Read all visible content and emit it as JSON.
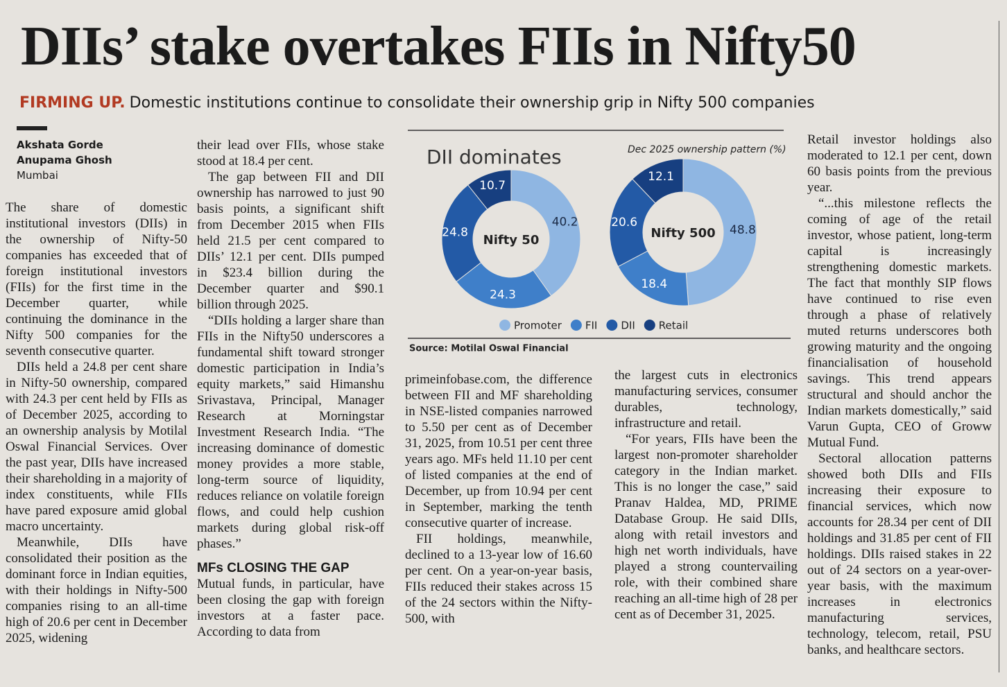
{
  "header": {
    "title": "DIIs’ stake overtakes FIIs in Nifty50",
    "kicker": "FIRMING UP.",
    "subtitle": "Domestic institutions continue to consolidate their ownership grip in Nifty 500 companies"
  },
  "byline": {
    "authors": [
      "Akshata Gorde",
      "Anupama Ghosh"
    ],
    "place": "Mumbai"
  },
  "chart_data": {
    "type": "pie",
    "donut": true,
    "title": "DII dominates",
    "subtitle": "Dec 2025 ownership pattern (%)",
    "source": "Source: Motilal Oswal Financial",
    "categories": [
      "Promoter",
      "FII",
      "DII",
      "Retail"
    ],
    "colors": [
      "#8fb6e2",
      "#3f7fc9",
      "#235aa6",
      "#173f80"
    ],
    "series": [
      {
        "name": "Nifty 50",
        "values": [
          40.2,
          24.3,
          24.8,
          10.7
        ]
      },
      {
        "name": "Nifty 500",
        "values": [
          48.8,
          18.4,
          20.6,
          12.1
        ]
      }
    ]
  },
  "columns": [
    {
      "paragraphs": [
        "The share of domestic institutional investors (DIIs) in the ownership of Nifty-50 companies has exceeded that of foreign institutional investors (FIIs) for the first time in the December quarter, while continuing the dominance in the Nifty 500 companies for the seventh consecutive quarter.",
        "DIIs held a 24.8 per cent share in Nifty-50 ownership, compared with 24.3 per cent held by FIIs as of December 2025, according to an ownership analysis by Motilal Oswal Financial Services. Over the past year, DIIs have increased their shareholding in a majority of index constituents, while FIIs have pared exposure amid global macro uncertainty.",
        "Meanwhile, DIIs have consolidated their position as the dominant force in Indian equities, with their holdings in Nifty-500 companies rising to an all-time high of 20.6 per cent in December 2025, widening"
      ]
    },
    {
      "paragraphs": [
        "their lead over FIIs, whose stake stood at 18.4 per cent.",
        "The gap between FII and DII ownership has narrowed to just 90 basis points, a significant shift from December 2015 when FIIs held 21.5 per cent compared to DIIs’ 12.1 per cent. DIIs pumped in $23.4 billion during the December quarter and $90.1 billion through 2025.",
        "“DIIs holding a larger share than FIIs in the Nifty50 underscores a fundamental shift toward stronger domestic participation in India’s equity markets,” said Himanshu Srivastava, Principal, Manager Research at Morningstar Investment Research India. “The increasing dominance of domestic money provides a more stable, long-term source of liquidity, reduces reliance on volatile foreign flows, and could help cushion markets during global risk-off phases.”"
      ],
      "subhead": "MFs CLOSING THE GAP",
      "after": [
        "Mutual funds, in particular, have been closing the gap with foreign investors at a faster pace. According to data from"
      ]
    },
    {
      "paragraphs": [
        "primeinfobase.com, the difference between FII and MF shareholding in NSE-listed companies narrowed to 5.50 per cent as of December 31, 2025, from 10.51 per cent three years ago. MFs held 11.10 per cent of listed companies at the end of December, up from 10.94 per cent in September, marking the tenth consecutive quarter of increase.",
        "FII holdings, meanwhile, declined to a 13-year low of 16.60 per cent. On a year-on-year basis, FIIs reduced their stakes across 15 of the 24 sectors within the Nifty-500, with"
      ]
    },
    {
      "paragraphs": [
        "the largest cuts in electronics manufacturing services, consumer durables, technology, infrastructure and retail.",
        "“For years, FIIs have been the largest non-promoter shareholder category in the Indian market. This is no longer the case,” said Pranav Haldea, MD, PRIME Database Group. He said DIIs, along with retail investors and high net worth individuals, have played a strong countervailing role, with their combined share reaching an all-time high of 28 per cent as of December 31, 2025."
      ]
    },
    {
      "paragraphs": [
        "Retail investor holdings also moderated to 12.1 per cent, down 60 basis points from the previous year.",
        "“...this milestone reflects the coming of age of the retail investor, whose patient, long-term capital is increasingly strengthening domestic markets. The fact that monthly SIP flows have continued to rise even through a phase of relatively muted returns underscores both growing maturity and the ongoing financialisation of household savings. This trend appears structural and should anchor the Indian markets domestically,” said Varun Gupta, CEO of Groww Mutual Fund.",
        "Sectoral allocation patterns showed both DIIs and FIIs increasing their exposure to financial services, which now accounts for 28.34 per cent of DII holdings and 31.85 per cent of FII holdings. DIIs raised stakes in 22 out of 24 sectors on a year-over-year basis, with the maximum increases in electronics manufacturing services, technology, telecom, retail, PSU banks, and healthcare sectors."
      ]
    }
  ]
}
